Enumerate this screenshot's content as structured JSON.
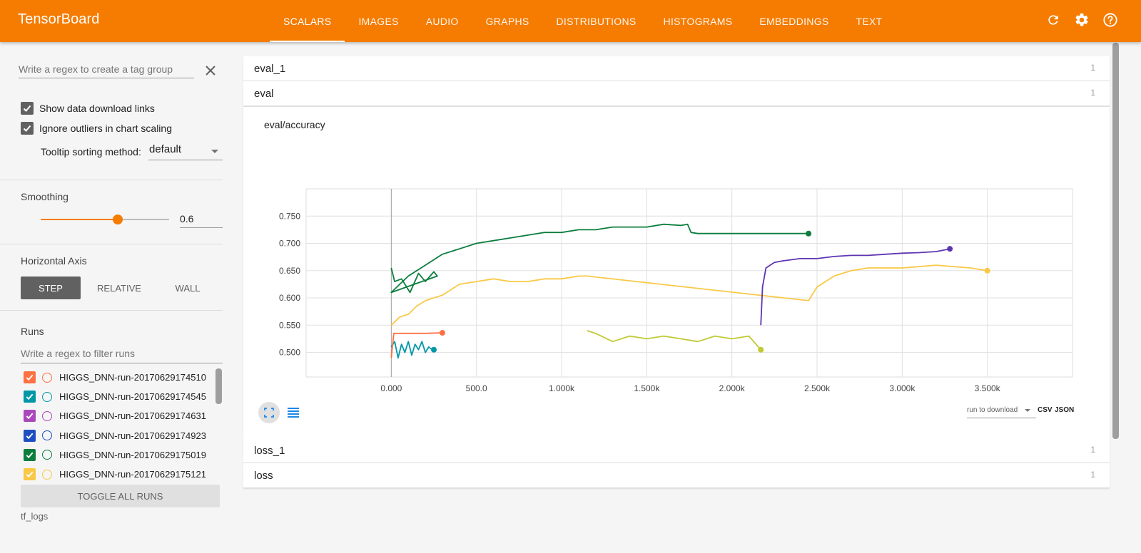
{
  "header": {
    "brand": "TensorBoard",
    "tabs": [
      {
        "label": "SCALARS",
        "active": true
      },
      {
        "label": "IMAGES"
      },
      {
        "label": "AUDIO"
      },
      {
        "label": "GRAPHS"
      },
      {
        "label": "DISTRIBUTIONS"
      },
      {
        "label": "HISTOGRAMS"
      },
      {
        "label": "EMBEDDINGS"
      },
      {
        "label": "TEXT"
      }
    ],
    "icons": [
      "refresh-icon",
      "settings-icon",
      "help-icon"
    ]
  },
  "sidebar": {
    "tag_regex_placeholder": "Write a regex to create a tag group",
    "show_download_links": "Show data download links",
    "ignore_outliers": "Ignore outliers in chart scaling",
    "tooltip_sort_label": "Tooltip sorting method:",
    "tooltip_sort_value": "default",
    "smoothing_title": "Smoothing",
    "smoothing_value": "0.6",
    "smoothing_fraction": 0.6,
    "horizontal_axis_title": "Horizontal Axis",
    "axis_options": [
      "STEP",
      "RELATIVE",
      "WALL"
    ],
    "axis_selected": "STEP",
    "runs_title": "Runs",
    "runs_filter_placeholder": "Write a regex to filter runs",
    "runs": [
      {
        "name": "HIGGS_DNN-run-20170629174510",
        "color": "#ff7043"
      },
      {
        "name": "HIGGS_DNN-run-20170629174545",
        "color": "#0097a7"
      },
      {
        "name": "HIGGS_DNN-run-20170629174631",
        "color": "#ab47bc"
      },
      {
        "name": "HIGGS_DNN-run-20170629174923",
        "color": "#1e4fc1"
      },
      {
        "name": "HIGGS_DNN-run-20170629175019",
        "color": "#0b7d3e"
      },
      {
        "name": "HIGGS_DNN-run-20170629175121",
        "color": "#f9c846"
      }
    ],
    "toggle_all": "TOGGLE ALL RUNS",
    "logdir": "tf_logs"
  },
  "main": {
    "groups": [
      {
        "name": "eval_1",
        "count": "1"
      },
      {
        "name": "eval",
        "count": "1"
      },
      {
        "name": "loss_1",
        "count": "1"
      },
      {
        "name": "loss",
        "count": "1"
      }
    ],
    "download_select": "run to download",
    "csv_label": "CSV",
    "json_label": "JSON"
  },
  "chart_data": {
    "type": "line",
    "title": "eval/accuracy",
    "xlabel": "",
    "ylabel": "",
    "xlim": [
      -500,
      4000
    ],
    "ylim": [
      0.455,
      0.8
    ],
    "x_ticks": [
      "0.000",
      "500.0",
      "1.000k",
      "1.500k",
      "2.000k",
      "2.500k",
      "3.000k",
      "3.500k"
    ],
    "x_tick_values": [
      0,
      500,
      1000,
      1500,
      2000,
      2500,
      3000,
      3500
    ],
    "y_ticks": [
      "0.500",
      "0.550",
      "0.600",
      "0.650",
      "0.700",
      "0.750"
    ],
    "y_tick_values": [
      0.5,
      0.55,
      0.6,
      0.65,
      0.7,
      0.75
    ],
    "grid": true,
    "series": [
      {
        "name": "HIGGS_DNN-run-20170629175019",
        "color": "#0b7d3e",
        "x": [
          0,
          20,
          60,
          110,
          160,
          200,
          250,
          270,
          0,
          100,
          200,
          300,
          400,
          500,
          600,
          700,
          800,
          900,
          1000,
          1100,
          1200,
          1300,
          1400,
          1500,
          1600,
          1700,
          1740,
          1760,
          1800,
          2000,
          2200,
          2450
        ],
        "y": [
          0.655,
          0.63,
          0.635,
          0.61,
          0.645,
          0.63,
          0.648,
          0.64,
          0.61,
          0.64,
          0.66,
          0.68,
          0.69,
          0.7,
          0.705,
          0.71,
          0.715,
          0.72,
          0.72,
          0.725,
          0.725,
          0.73,
          0.73,
          0.73,
          0.735,
          0.733,
          0.735,
          0.72,
          0.718,
          0.718,
          0.718,
          0.718
        ]
      },
      {
        "name": "HIGGS_DNN-run-20170629175121",
        "color": "#f9c846",
        "x": [
          0,
          50,
          100,
          150,
          200,
          300,
          400,
          500,
          600,
          700,
          800,
          900,
          1000,
          1100,
          1150,
          2450,
          2500,
          2600,
          2700,
          2800,
          3000,
          3200,
          3400,
          3500
        ],
        "y": [
          0.55,
          0.565,
          0.57,
          0.585,
          0.595,
          0.605,
          0.625,
          0.63,
          0.635,
          0.63,
          0.63,
          0.635,
          0.635,
          0.64,
          0.64,
          0.595,
          0.62,
          0.64,
          0.65,
          0.655,
          0.655,
          0.66,
          0.655,
          0.65
        ]
      },
      {
        "name": "HIGGS_DNN-run-20170629174631",
        "color": "#5e35b1",
        "x": [
          2170,
          2180,
          2200,
          2250,
          2300,
          2400,
          2500,
          2600,
          2700,
          2800,
          2900,
          3000,
          3100,
          3200,
          3280
        ],
        "y": [
          0.55,
          0.62,
          0.655,
          0.665,
          0.668,
          0.672,
          0.672,
          0.676,
          0.678,
          0.678,
          0.68,
          0.682,
          0.683,
          0.685,
          0.69
        ]
      },
      {
        "name": "HIGGS_DNN-run-20170629174923",
        "color": "#c0ca33",
        "x": [
          1150,
          1200,
          1300,
          1400,
          1500,
          1600,
          1700,
          1800,
          1900,
          2000,
          2100,
          2170
        ],
        "y": [
          0.54,
          0.535,
          0.52,
          0.53,
          0.525,
          0.53,
          0.525,
          0.52,
          0.53,
          0.525,
          0.53,
          0.505
        ]
      },
      {
        "name": "HIGGS_DNN-run-20170629174545",
        "color": "#0097a7",
        "x": [
          0,
          20,
          40,
          60,
          80,
          100,
          120,
          140,
          160,
          180,
          200,
          220,
          240,
          250
        ],
        "y": [
          0.51,
          0.52,
          0.49,
          0.515,
          0.5,
          0.52,
          0.495,
          0.515,
          0.505,
          0.52,
          0.5,
          0.51,
          0.505,
          0.505
        ]
      },
      {
        "name": "HIGGS_DNN-run-20170629174510",
        "color": "#ff7043",
        "x": [
          0,
          15,
          40,
          100,
          200,
          300
        ],
        "y": [
          0.49,
          0.535,
          0.535,
          0.535,
          0.535,
          0.536
        ]
      }
    ]
  }
}
